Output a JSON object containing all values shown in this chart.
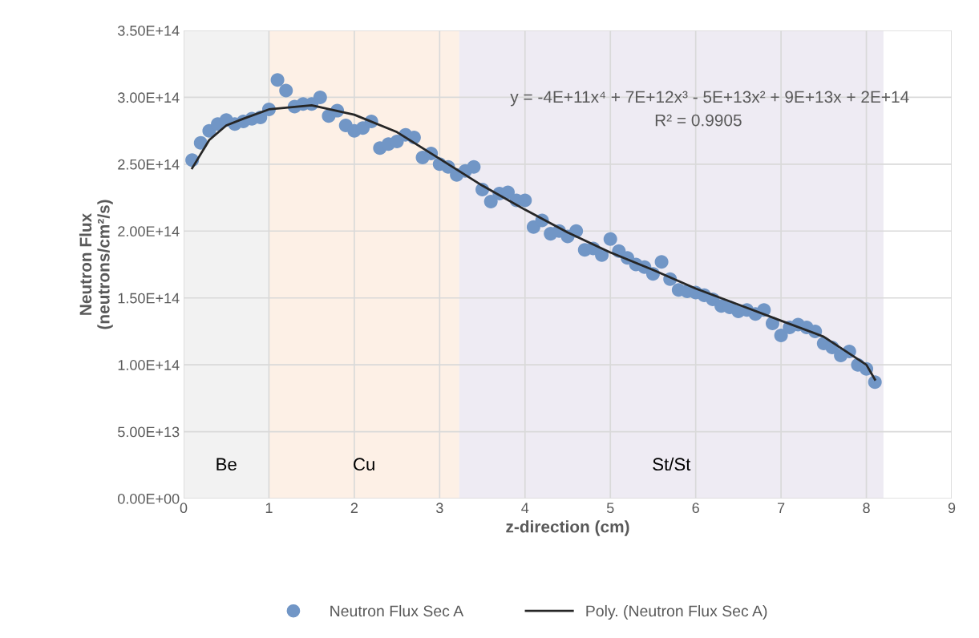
{
  "chart_data": {
    "type": "scatter",
    "xlabel": "z-direction (cm)",
    "ylabel": "Neutron Flux\n(neutrons/cm²/s)",
    "xlim": [
      0,
      9
    ],
    "xticks": [
      0,
      1,
      2,
      3,
      4,
      5,
      6,
      7,
      8,
      9
    ],
    "ylim": [
      0,
      350000000000000.0
    ],
    "yticks": [
      {
        "value": 0,
        "label": "0.00E+00"
      },
      {
        "value": 50000000000000.0,
        "label": "5.00E+13"
      },
      {
        "value": 100000000000000.0,
        "label": "1.00E+14"
      },
      {
        "value": 150000000000000.0,
        "label": "1.50E+14"
      },
      {
        "value": 200000000000000.0,
        "label": "2.00E+14"
      },
      {
        "value": 250000000000000.0,
        "label": "2.50E+14"
      },
      {
        "value": 300000000000000.0,
        "label": "3.00E+14"
      },
      {
        "value": 350000000000000.0,
        "label": "3.50E+14"
      }
    ],
    "grid": true,
    "legend": "bottom",
    "bands": [
      {
        "axis": "x",
        "from": 0,
        "to": 1,
        "label": "Be",
        "color": "#f2f2f2"
      },
      {
        "axis": "x",
        "from": 1,
        "to": 3.23,
        "label": "Cu",
        "color": "#fdf0e6"
      },
      {
        "axis": "x",
        "from": 3.23,
        "to": 8.2,
        "label": "St/St",
        "color": "#eeebf3"
      }
    ],
    "annotations": [
      "y = -4E+11x⁴ + 7E+12x³ - 5E+13x² + 9E+13x + 2E+14",
      "R² = 0.9905"
    ],
    "series": [
      {
        "name": "Neutron Flux Sec A",
        "marker": "circle",
        "color": "#7196c6",
        "x": [
          0.1,
          0.2,
          0.3,
          0.4,
          0.5,
          0.6,
          0.7,
          0.8,
          0.9,
          1.0,
          1.1,
          1.2,
          1.3,
          1.4,
          1.5,
          1.6,
          1.7,
          1.8,
          1.9,
          2.0,
          2.1,
          2.2,
          2.3,
          2.4,
          2.5,
          2.6,
          2.7,
          2.8,
          2.9,
          3.0,
          3.1,
          3.2,
          3.3,
          3.4,
          3.5,
          3.6,
          3.7,
          3.8,
          3.9,
          4.0,
          4.1,
          4.2,
          4.3,
          4.4,
          4.5,
          4.6,
          4.7,
          4.8,
          4.9,
          5.0,
          5.1,
          5.2,
          5.3,
          5.4,
          5.5,
          5.6,
          5.7,
          5.8,
          5.9,
          6.0,
          6.1,
          6.2,
          6.3,
          6.4,
          6.5,
          6.6,
          6.7,
          6.8,
          6.9,
          7.0,
          7.1,
          7.2,
          7.3,
          7.4,
          7.5,
          7.6,
          7.7,
          7.8,
          7.9,
          8.0,
          8.1
        ],
        "values": [
          253000000000000.0,
          266000000000000.0,
          275000000000000.0,
          280000000000000.0,
          283000000000000.0,
          280000000000000.0,
          282000000000000.0,
          284000000000000.0,
          285000000000000.0,
          291000000000000.0,
          313000000000000.0,
          305000000000000.0,
          293000000000000.0,
          295000000000000.0,
          295000000000000.0,
          300000000000000.0,
          286000000000000.0,
          290000000000000.0,
          279000000000000.0,
          275000000000000.0,
          277000000000000.0,
          282000000000000.0,
          262000000000000.0,
          265000000000000.0,
          267000000000000.0,
          272000000000000.0,
          270000000000000.0,
          255000000000000.0,
          258000000000000.0,
          250000000000000.0,
          248000000000000.0,
          242000000000000.0,
          245000000000000.0,
          248000000000000.0,
          231000000000000.0,
          222000000000000.0,
          228000000000000.0,
          229000000000000.0,
          223000000000000.0,
          223000000000000.0,
          203000000000000.0,
          208000000000000.0,
          198000000000000.0,
          200000000000000.0,
          196000000000000.0,
          200000000000000.0,
          186000000000000.0,
          187000000000000.0,
          182000000000000.0,
          194000000000000.0,
          185000000000000.0,
          180000000000000.0,
          175000000000000.0,
          173000000000000.0,
          168000000000000.0,
          177000000000000.0,
          164000000000000.0,
          156000000000000.0,
          155000000000000.0,
          154000000000000.0,
          152000000000000.0,
          149000000000000.0,
          144000000000000.0,
          143000000000000.0,
          140000000000000.0,
          141000000000000.0,
          138000000000000.0,
          141000000000000.0,
          131000000000000.0,
          122000000000000.0,
          128000000000000.0,
          130000000000000.0,
          128000000000000.0,
          125000000000000.0,
          116000000000000.0,
          113000000000000.0,
          107000000000000.0,
          110000000000000.0,
          100000000000000.0,
          97000000000000.0,
          87000000000000.0
        ]
      },
      {
        "name": "Poly. (Neutron Flux Sec A)",
        "type": "line",
        "line_style": "solid",
        "marker": "none",
        "color": "#262626",
        "x": [
          0.1,
          0.3,
          0.5,
          0.7,
          1.0,
          1.5,
          2.0,
          2.5,
          3.0,
          3.5,
          4.0,
          4.5,
          5.0,
          5.5,
          6.0,
          6.5,
          7.0,
          7.5,
          8.0,
          8.1
        ],
        "values": [
          247000000000000.0,
          268000000000000.0,
          279000000000000.0,
          284000000000000.0,
          291000000000000.0,
          294000000000000.0,
          287000000000000.0,
          274000000000000.0,
          254000000000000.0,
          234000000000000.0,
          216000000000000.0,
          199000000000000.0,
          184000000000000.0,
          171000000000000.0,
          157000000000000.0,
          145000000000000.0,
          133000000000000.0,
          121000000000000.0,
          100000000000000.0,
          89000000000000.0
        ]
      }
    ]
  }
}
